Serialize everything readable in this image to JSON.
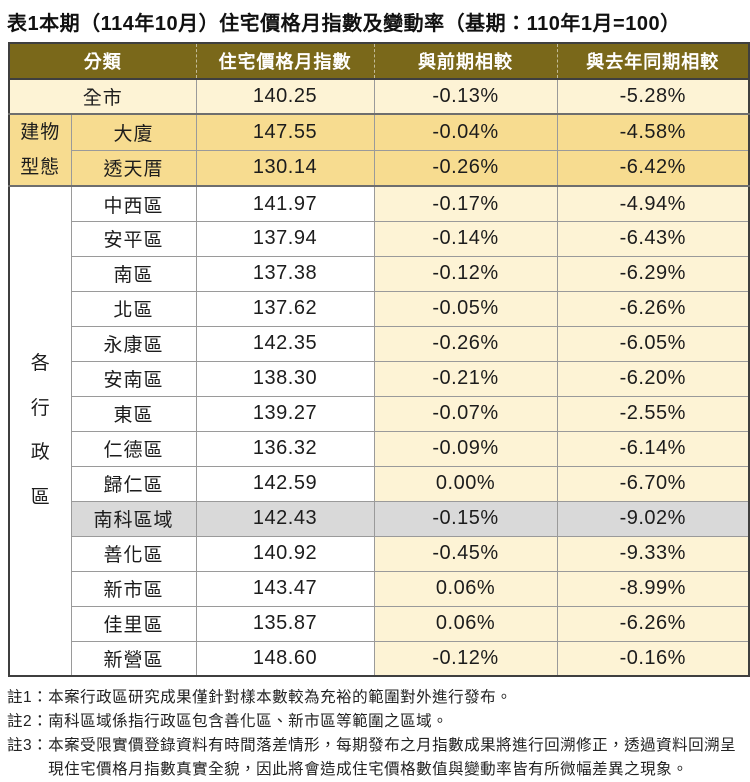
{
  "title": "表1本期（114年10月）住宅價格月指數及變動率（基期：110年1月=100）",
  "table": {
    "headers": {
      "category": "分類",
      "index": "住宅價格月指數",
      "mom": "與前期相較",
      "yoy": "與去年同期相較"
    },
    "groups": {
      "building_type": "建物型態",
      "districts": "各行政區"
    },
    "rows": [
      {
        "name": "全市",
        "index": "140.25",
        "mom": "-0.13%",
        "yoy": "-5.28%"
      },
      {
        "name": "大廈",
        "index": "147.55",
        "mom": "-0.04%",
        "yoy": "-4.58%"
      },
      {
        "name": "透天厝",
        "index": "130.14",
        "mom": "-0.26%",
        "yoy": "-6.42%"
      },
      {
        "name": "中西區",
        "index": "141.97",
        "mom": "-0.17%",
        "yoy": "-4.94%"
      },
      {
        "name": "安平區",
        "index": "137.94",
        "mom": "-0.14%",
        "yoy": "-6.43%"
      },
      {
        "name": "南區",
        "index": "137.38",
        "mom": "-0.12%",
        "yoy": "-6.29%"
      },
      {
        "name": "北區",
        "index": "137.62",
        "mom": "-0.05%",
        "yoy": "-6.26%"
      },
      {
        "name": "永康區",
        "index": "142.35",
        "mom": "-0.26%",
        "yoy": "-6.05%"
      },
      {
        "name": "安南區",
        "index": "138.30",
        "mom": "-0.21%",
        "yoy": "-6.20%"
      },
      {
        "name": "東區",
        "index": "139.27",
        "mom": "-0.07%",
        "yoy": "-2.55%"
      },
      {
        "name": "仁德區",
        "index": "136.32",
        "mom": "-0.09%",
        "yoy": "-6.14%"
      },
      {
        "name": "歸仁區",
        "index": "142.59",
        "mom": "0.00%",
        "yoy": "-6.70%"
      },
      {
        "name": "南科區域",
        "index": "142.43",
        "mom": "-0.15%",
        "yoy": "-9.02%"
      },
      {
        "name": "善化區",
        "index": "140.92",
        "mom": "-0.45%",
        "yoy": "-9.33%"
      },
      {
        "name": "新市區",
        "index": "143.47",
        "mom": "0.06%",
        "yoy": "-8.99%"
      },
      {
        "name": "佳里區",
        "index": "135.87",
        "mom": "0.06%",
        "yoy": "-6.26%"
      },
      {
        "name": "新營區",
        "index": "148.60",
        "mom": "-0.12%",
        "yoy": "-0.16%"
      }
    ]
  },
  "notes": [
    {
      "label": "註1：",
      "text": "本案行政區研究成果僅針對樣本數較為充裕的範圍對外進行發布。"
    },
    {
      "label": "註2：",
      "text": "南科區域係指行政區包含善化區、新市區等範圍之區域。"
    },
    {
      "label": "註3：",
      "text": "本案受限實價登錄資料有時間落差情形，每期發布之月指數成果將進行回溯修正，透過資料回溯呈現住宅價格月指數真實全貌，因此將會造成住宅價格數值與變動率皆有所微幅差異之現象。"
    }
  ],
  "colors": {
    "header_bg": "#7a681a",
    "header_text": "#ffffff",
    "building_section_bg": "#f7dc90",
    "cream_bg": "#fdf3d5",
    "highlight_row_bg": "#d9d9d9"
  }
}
